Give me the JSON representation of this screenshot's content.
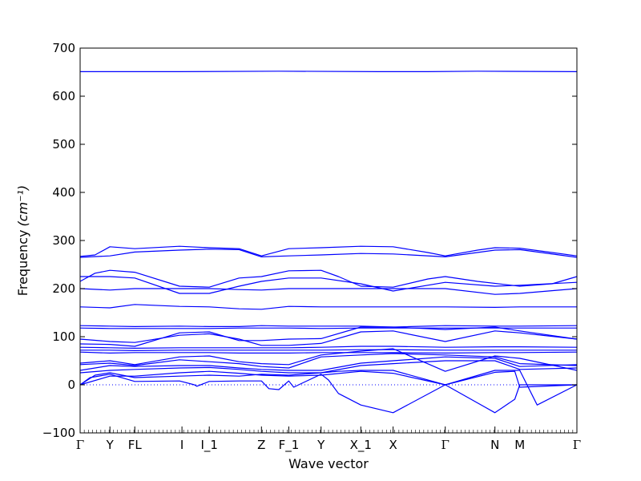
{
  "chart_data": {
    "type": "line",
    "title": "",
    "xlabel": "Wave vector",
    "ylabel": "Frequency",
    "ylabel_unit": "(cm⁻¹)",
    "ylim": [
      -100,
      700
    ],
    "yticks": [
      -100,
      0,
      100,
      200,
      300,
      400,
      500,
      600,
      700
    ],
    "xlim": [
      0,
      1
    ],
    "xticks": [
      {
        "label": "Γ",
        "x": 0.0
      },
      {
        "label": "Y",
        "x": 0.06
      },
      {
        "label": "FL",
        "x": 0.11
      },
      {
        "label": "I",
        "x": 0.205
      },
      {
        "label": "I_1",
        "x": 0.26
      },
      {
        "label": "Z",
        "x": 0.365
      },
      {
        "label": "F_1",
        "x": 0.42
      },
      {
        "label": "Y",
        "x": 0.485
      },
      {
        "label": "X_1",
        "x": 0.565
      },
      {
        "label": "X",
        "x": 0.63
      },
      {
        "label": "Γ",
        "x": 0.735
      },
      {
        "label": "N",
        "x": 0.835
      },
      {
        "label": "M",
        "x": 0.885
      },
      {
        "label": "Γ",
        "x": 1.0
      }
    ],
    "zero_line": 0,
    "color": "#0000ff",
    "series": [
      {
        "x": [
          0,
          0.06,
          0.2,
          0.4,
          0.6,
          0.7,
          0.8,
          1
        ],
        "values": [
          651,
          651,
          651,
          652,
          651,
          651,
          652,
          651
        ]
      },
      {
        "x": [
          0,
          0.03,
          0.06,
          0.11,
          0.2,
          0.26,
          0.32,
          0.365,
          0.42,
          0.485,
          0.565,
          0.63,
          0.7,
          0.735,
          0.8,
          0.835,
          0.885,
          0.95,
          1
        ],
        "values": [
          267,
          270,
          287,
          283,
          288,
          285,
          283,
          268,
          283,
          285,
          288,
          287,
          275,
          268,
          280,
          285,
          284,
          275,
          268
        ]
      },
      {
        "x": [
          0,
          0.06,
          0.11,
          0.2,
          0.26,
          0.32,
          0.365,
          0.42,
          0.485,
          0.565,
          0.63,
          0.735,
          0.835,
          0.885,
          1
        ],
        "values": [
          265,
          268,
          276,
          280,
          282,
          281,
          266,
          268,
          270,
          273,
          272,
          266,
          280,
          281,
          265
        ]
      },
      {
        "x": [
          0,
          0.03,
          0.06,
          0.11,
          0.2,
          0.26,
          0.32,
          0.365,
          0.42,
          0.485,
          0.52,
          0.565,
          0.63,
          0.7,
          0.735,
          0.8,
          0.885,
          0.95,
          1
        ],
        "values": [
          215,
          232,
          238,
          234,
          205,
          203,
          222,
          225,
          237,
          238,
          225,
          205,
          203,
          220,
          225,
          215,
          205,
          210,
          225
        ]
      },
      {
        "x": [
          0,
          0.06,
          0.11,
          0.2,
          0.26,
          0.32,
          0.365,
          0.42,
          0.485,
          0.565,
          0.63,
          0.735,
          0.835,
          0.885,
          1
        ],
        "values": [
          225,
          225,
          222,
          190,
          190,
          205,
          215,
          222,
          222,
          210,
          195,
          213,
          205,
          207,
          213
        ]
      },
      {
        "x": [
          0,
          0.06,
          0.11,
          0.2,
          0.26,
          0.32,
          0.365,
          0.42,
          0.485,
          0.565,
          0.63,
          0.735,
          0.835,
          0.885,
          1
        ],
        "values": [
          200,
          197,
          200,
          200,
          200,
          198,
          197,
          200,
          200,
          200,
          200,
          200,
          188,
          190,
          200
        ]
      },
      {
        "x": [
          0,
          0.06,
          0.11,
          0.2,
          0.26,
          0.32,
          0.365,
          0.42,
          0.485,
          0.565,
          0.63,
          0.735,
          0.835,
          0.885,
          1
        ],
        "values": [
          162,
          160,
          167,
          163,
          162,
          158,
          157,
          163,
          162,
          162,
          162,
          162,
          161,
          162,
          162
        ]
      },
      {
        "x": [
          0,
          0.06,
          0.11,
          0.2,
          0.26,
          0.32,
          0.365,
          0.42,
          0.485,
          0.565,
          0.63,
          0.735,
          0.835,
          0.885,
          1
        ],
        "values": [
          123,
          122,
          121,
          122,
          121,
          121,
          123,
          122,
          122,
          122,
          120,
          123,
          122,
          122,
          123
        ]
      },
      {
        "x": [
          0,
          0.06,
          0.11,
          0.2,
          0.26,
          0.32,
          0.365,
          0.42,
          0.485,
          0.565,
          0.63,
          0.735,
          0.835,
          0.885,
          1
        ],
        "values": [
          118,
          117,
          117,
          117,
          117,
          118,
          118,
          118,
          117,
          118,
          118,
          118,
          118,
          118,
          118
        ]
      },
      {
        "x": [
          0,
          0.06,
          0.11,
          0.2,
          0.26,
          0.32,
          0.365,
          0.42,
          0.485,
          0.565,
          0.63,
          0.735,
          0.835,
          0.885,
          1
        ],
        "values": [
          95,
          90,
          88,
          103,
          106,
          95,
          82,
          82,
          86,
          110,
          112,
          90,
          112,
          108,
          95
        ]
      },
      {
        "x": [
          0,
          0.06,
          0.11,
          0.2,
          0.26,
          0.32,
          0.365,
          0.42,
          0.485,
          0.565,
          0.63,
          0.735,
          0.835,
          0.885,
          1
        ],
        "values": [
          85,
          84,
          80,
          108,
          110,
          92,
          92,
          95,
          96,
          120,
          120,
          115,
          120,
          112,
          95
        ]
      },
      {
        "x": [
          0,
          0.06,
          0.11,
          0.2,
          0.26,
          0.32,
          0.365,
          0.42,
          0.485,
          0.565,
          0.63,
          0.735,
          0.835,
          0.885,
          1
        ],
        "values": [
          78,
          77,
          76,
          77,
          77,
          77,
          77,
          77,
          78,
          80,
          80,
          78,
          79,
          79,
          78
        ]
      },
      {
        "x": [
          0,
          0.06,
          0.11,
          0.2,
          0.26,
          0.32,
          0.365,
          0.42,
          0.485,
          0.565,
          0.63,
          0.735,
          0.835,
          0.885,
          1
        ],
        "values": [
          72,
          72,
          71,
          72,
          72,
          72,
          72,
          72,
          72,
          73,
          73,
          72,
          72,
          72,
          72
        ]
      },
      {
        "x": [
          0,
          0.06,
          0.11,
          0.2,
          0.26,
          0.32,
          0.365,
          0.42,
          0.485,
          0.565,
          0.63,
          0.735,
          0.835,
          0.885,
          1
        ],
        "values": [
          68,
          66,
          67,
          67,
          67,
          66,
          66,
          66,
          67,
          67,
          67,
          66,
          67,
          67,
          68
        ]
      },
      {
        "x": [
          0,
          0.06,
          0.11,
          0.2,
          0.26,
          0.32,
          0.365,
          0.42,
          0.485,
          0.565,
          0.63,
          0.735,
          0.835,
          0.885,
          1
        ],
        "values": [
          45,
          50,
          42,
          58,
          60,
          48,
          44,
          42,
          62,
          70,
          75,
          28,
          60,
          55,
          30
        ]
      },
      {
        "x": [
          0,
          0.06,
          0.11,
          0.2,
          0.26,
          0.32,
          0.365,
          0.42,
          0.485,
          0.565,
          0.63,
          0.735,
          0.835,
          0.885,
          1
        ],
        "values": [
          42,
          45,
          40,
          52,
          48,
          44,
          38,
          35,
          58,
          62,
          65,
          62,
          58,
          44,
          40
        ]
      },
      {
        "x": [
          0,
          0.06,
          0.11,
          0.2,
          0.26,
          0.32,
          0.365,
          0.42,
          0.485,
          0.565,
          0.63,
          0.735,
          0.835,
          0.885,
          1
        ],
        "values": [
          30,
          40,
          38,
          40,
          40,
          35,
          32,
          30,
          30,
          45,
          50,
          58,
          55,
          38,
          42
        ]
      },
      {
        "x": [
          0,
          0.06,
          0.11,
          0.2,
          0.26,
          0.32,
          0.365,
          0.42,
          0.485,
          0.565,
          0.63,
          0.735,
          0.835,
          0.885,
          1
        ],
        "values": [
          25,
          30,
          32,
          35,
          36,
          32,
          28,
          25,
          25,
          40,
          44,
          50,
          50,
          32,
          35
        ]
      },
      {
        "x": [
          0,
          0.02,
          0.06,
          0.11,
          0.2,
          0.23,
          0.235,
          0.26,
          0.32,
          0.365,
          0.38,
          0.4,
          0.42,
          0.43,
          0.44,
          0.485,
          0.5,
          0.52,
          0.565,
          0.63,
          0.735,
          0.835,
          0.875,
          0.885,
          1
        ],
        "values": [
          0,
          15,
          22,
          7,
          8,
          0,
          -3,
          7,
          8,
          8,
          -8,
          -10,
          8,
          -5,
          0,
          22,
          10,
          -18,
          -42,
          -58,
          0,
          -58,
          -30,
          0,
          0
        ]
      },
      {
        "x": [
          0,
          0.03,
          0.06,
          0.11,
          0.2,
          0.26,
          0.32,
          0.365,
          0.42,
          0.485,
          0.52,
          0.565,
          0.63,
          0.735,
          0.835,
          0.885,
          0.92,
          1
        ],
        "values": [
          0,
          20,
          25,
          15,
          18,
          20,
          18,
          22,
          20,
          25,
          28,
          30,
          30,
          0,
          30,
          30,
          -42,
          0
        ]
      },
      {
        "x": [
          0,
          0.06,
          0.11,
          0.2,
          0.26,
          0.32,
          0.365,
          0.42,
          0.485,
          0.565,
          0.63,
          0.735,
          0.835,
          0.875,
          0.885,
          1
        ],
        "values": [
          0,
          18,
          18,
          25,
          28,
          24,
          20,
          18,
          20,
          28,
          24,
          0,
          26,
          28,
          -5,
          0
        ]
      }
    ]
  }
}
